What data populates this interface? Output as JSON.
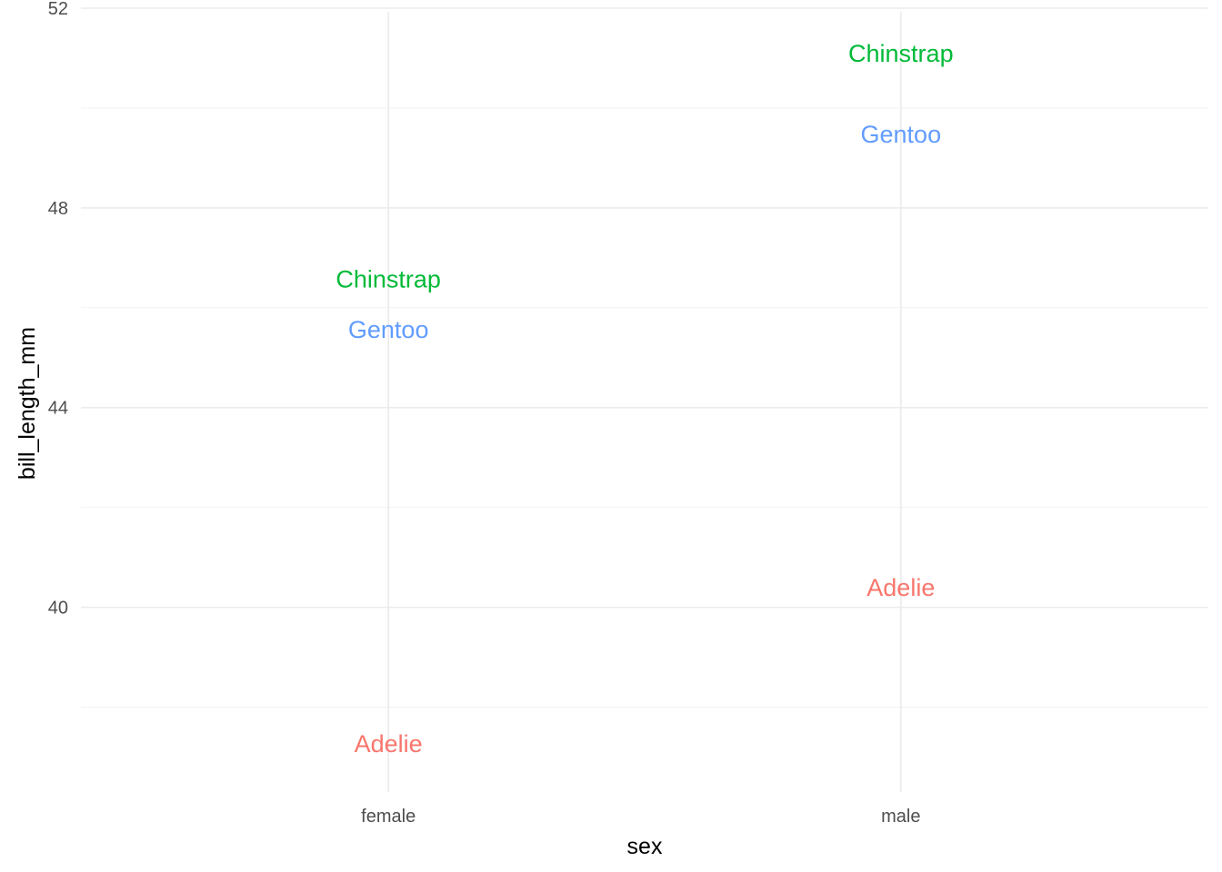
{
  "chart_data": {
    "type": "scatter",
    "mark": "text",
    "xlabel": "sex",
    "ylabel": "bill_length_mm",
    "categories": [
      "female",
      "male"
    ],
    "ylim": [
      36.3,
      52
    ],
    "yticks": [
      40,
      44,
      48,
      52
    ],
    "yminor": [
      38,
      42,
      46,
      50
    ],
    "grid": true,
    "legend": "none",
    "series": [
      {
        "name": "Adelie",
        "color": "#F8766D",
        "values": [
          37.26,
          40.39
        ]
      },
      {
        "name": "Chinstrap",
        "color": "#00BA38",
        "values": [
          46.57,
          51.09
        ]
      },
      {
        "name": "Gentoo",
        "color": "#619CFF",
        "values": [
          45.56,
          49.47
        ]
      }
    ]
  }
}
